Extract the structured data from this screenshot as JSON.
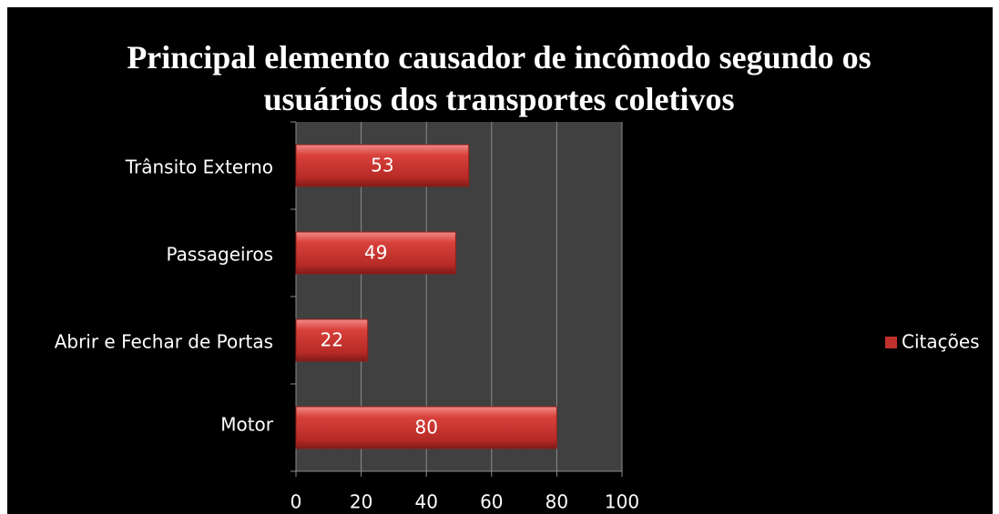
{
  "chart_data": {
    "type": "bar",
    "orientation": "horizontal",
    "title": "Principal elemento causador de incômodo segundo os usuários dos transportes coletivos",
    "categories": [
      "Motor",
      "Abrir e Fechar de Portas",
      "Passageiros",
      "Trânsito Externo"
    ],
    "series": [
      {
        "name": "Citações",
        "color": "#c0302c",
        "values": [
          80,
          22,
          49,
          53
        ]
      }
    ],
    "xlim": [
      0,
      100
    ],
    "xticks": [
      0,
      20,
      40,
      60,
      80,
      100
    ],
    "grid": true,
    "legend": "right"
  }
}
